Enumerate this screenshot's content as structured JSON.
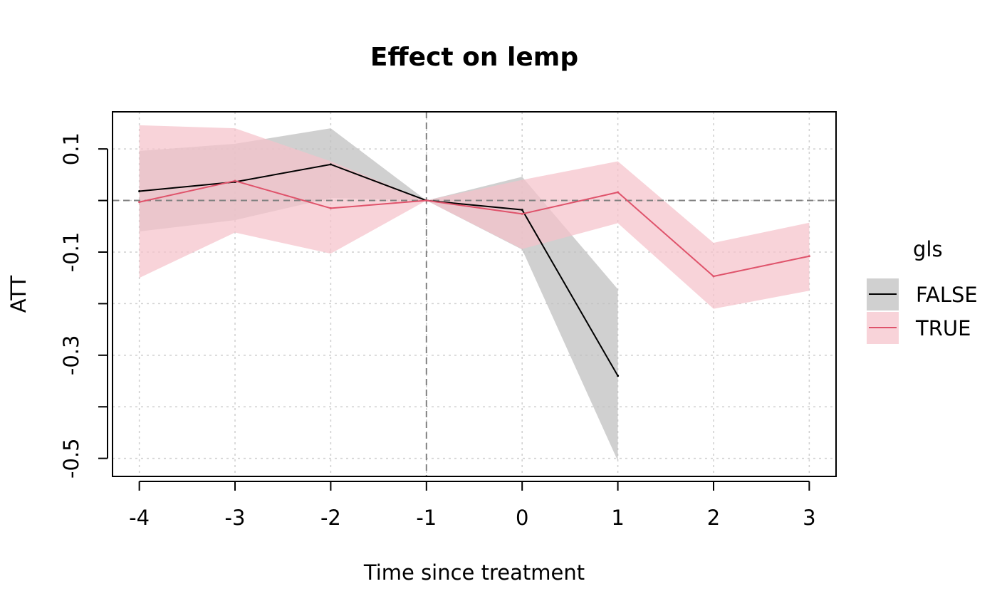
{
  "chart_data": {
    "type": "line",
    "title": "Effect on lemp",
    "xlabel": "Time since treatment",
    "ylabel": "ATT",
    "x_ticks": [
      "-4",
      "-3",
      "-2",
      "-1",
      "0",
      "1",
      "2",
      "3"
    ],
    "y_ticks": [
      "0.1",
      "-0.1",
      "-0.3",
      "-0.5"
    ],
    "y_tick_values": [
      0.1,
      -0.1,
      -0.3,
      -0.5
    ],
    "xlim": [
      -4.28,
      3.28
    ],
    "ylim": [
      -0.535,
      0.172
    ],
    "grid": true,
    "reference_lines": {
      "x": -1,
      "y": 0
    },
    "legend": {
      "title": "gls",
      "placement": "right",
      "entries": [
        "FALSE",
        "TRUE"
      ]
    },
    "series": [
      {
        "name": "FALSE",
        "color": "#000000",
        "band_color": "#bebebe",
        "x": [
          -4,
          -3,
          -2,
          -1,
          0,
          1
        ],
        "y": [
          0.018,
          0.036,
          0.07,
          0.0,
          -0.018,
          -0.34
        ],
        "lower": [
          -0.06,
          -0.038,
          0.005,
          0.0,
          -0.095,
          -0.505
        ],
        "upper": [
          0.096,
          0.11,
          0.14,
          0.0,
          0.046,
          -0.172
        ]
      },
      {
        "name": "TRUE",
        "color": "#df536b",
        "band_color": "#f5c2cb",
        "x": [
          -4,
          -3,
          -2,
          -1,
          0,
          1,
          2,
          3
        ],
        "y": [
          -0.003,
          0.038,
          -0.015,
          0.0,
          -0.026,
          0.016,
          -0.147,
          -0.108
        ],
        "lower": [
          -0.15,
          -0.062,
          -0.103,
          0.0,
          -0.094,
          -0.044,
          -0.21,
          -0.175
        ],
        "upper": [
          0.146,
          0.14,
          0.076,
          0.0,
          0.04,
          0.076,
          -0.082,
          -0.043
        ]
      }
    ]
  }
}
